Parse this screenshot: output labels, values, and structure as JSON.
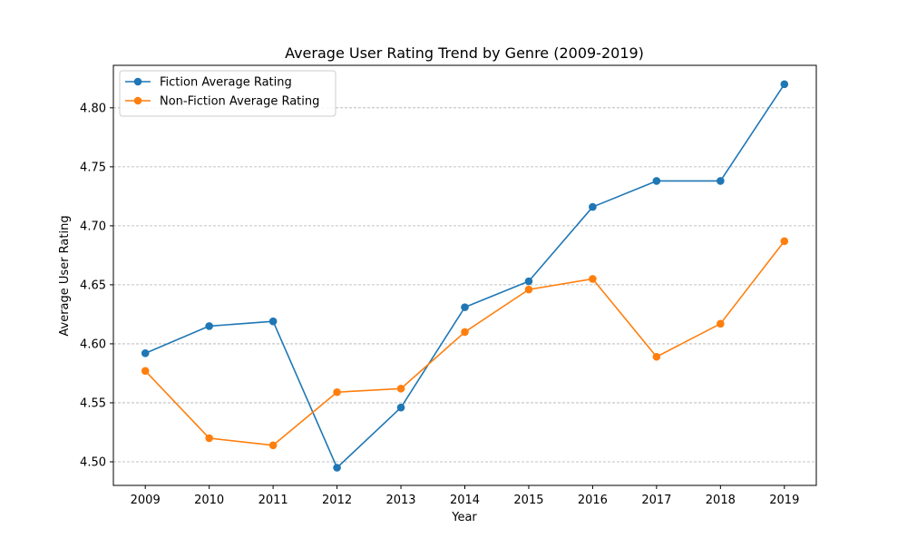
{
  "chart_data": {
    "type": "line",
    "title": "Average User Rating Trend by Genre (2009-2019)",
    "xlabel": "Year",
    "ylabel": "Average User Rating",
    "x": [
      "2009",
      "2010",
      "2011",
      "2012",
      "2013",
      "2014",
      "2015",
      "2016",
      "2017",
      "2018",
      "2019"
    ],
    "ylim": [
      4.48,
      4.836
    ],
    "yticks": [
      "4.50",
      "4.55",
      "4.60",
      "4.65",
      "4.70",
      "4.75",
      "4.80"
    ],
    "grid": "horizontal-dashed",
    "legend_position": "upper-left",
    "series": [
      {
        "name": "Fiction Average Rating",
        "color": "#1f77b4",
        "marker": "circle",
        "values": [
          4.592,
          4.615,
          4.619,
          4.495,
          4.546,
          4.631,
          4.653,
          4.716,
          4.738,
          4.738,
          4.82
        ]
      },
      {
        "name": "Non-Fiction Average Rating",
        "color": "#ff7f0e",
        "marker": "circle",
        "values": [
          4.577,
          4.52,
          4.514,
          4.559,
          4.562,
          4.61,
          4.646,
          4.655,
          4.589,
          4.617,
          4.687
        ]
      }
    ]
  }
}
